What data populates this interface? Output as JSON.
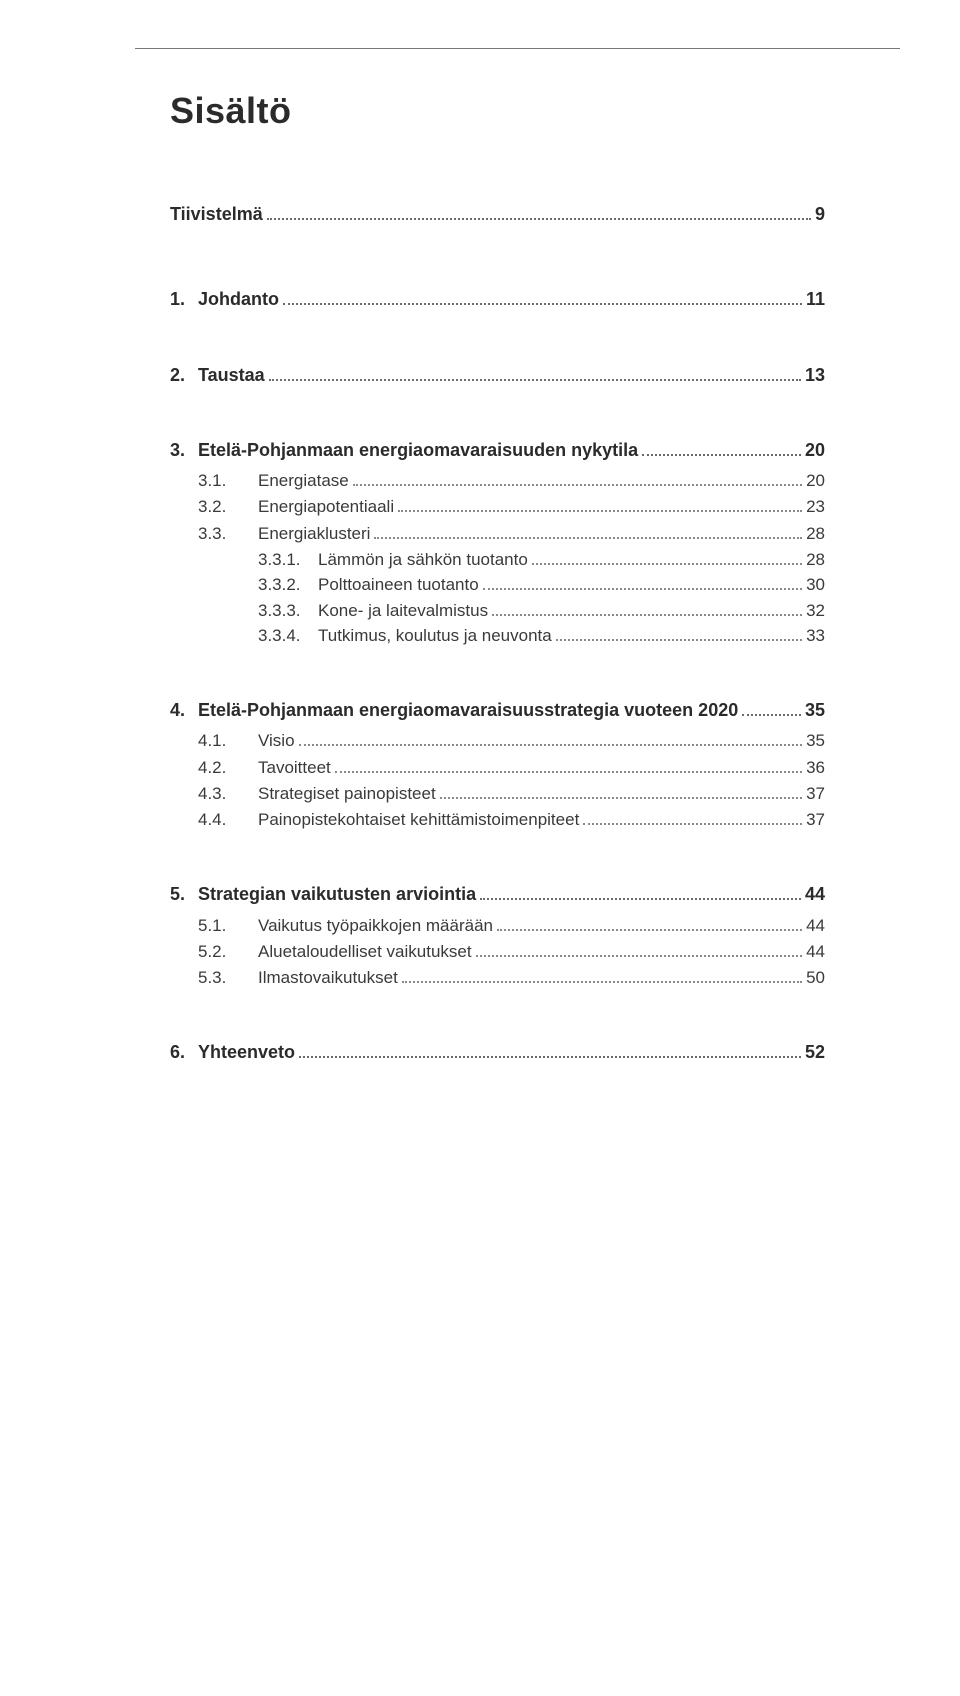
{
  "title": "Sisältö",
  "summary": {
    "label": "Tiivistelmä",
    "page": "9"
  },
  "sections": [
    {
      "num": "1.",
      "label": "Johdanto",
      "page": "11",
      "subs": []
    },
    {
      "num": "2.",
      "label": "Taustaa",
      "page": "13",
      "subs": []
    },
    {
      "num": "3.",
      "label": "Etelä-Pohjanmaan energiaomavaraisuuden nykytila",
      "page": "20",
      "subs": [
        {
          "num": "3.1.",
          "label": "Energiatase",
          "page": "20",
          "subsubs": []
        },
        {
          "num": "3.2.",
          "label": "Energiapotentiaali",
          "page": "23",
          "subsubs": []
        },
        {
          "num": "3.3.",
          "label": "Energiaklusteri",
          "page": "28",
          "subsubs": [
            {
              "num": "3.3.1.",
              "label": "Lämmön ja sähkön tuotanto",
              "page": "28"
            },
            {
              "num": "3.3.2.",
              "label": "Polttoaineen tuotanto",
              "page": "30"
            },
            {
              "num": "3.3.3.",
              "label": "Kone- ja laitevalmistus",
              "page": "32"
            },
            {
              "num": "3.3.4.",
              "label": "Tutkimus, koulutus ja neuvonta",
              "page": "33"
            }
          ]
        }
      ]
    },
    {
      "num": "4.",
      "label": "Etelä-Pohjanmaan energiaomavaraisuusstrategia vuoteen 2020",
      "page": "35",
      "subs": [
        {
          "num": "4.1.",
          "label": "Visio",
          "page": "35",
          "subsubs": []
        },
        {
          "num": "4.2.",
          "label": "Tavoitteet",
          "page": "36",
          "subsubs": []
        },
        {
          "num": "4.3.",
          "label": "Strategiset painopisteet",
          "page": "37",
          "subsubs": []
        },
        {
          "num": "4.4.",
          "label": "Painopistekohtaiset kehittämistoimenpiteet",
          "page": "37",
          "subsubs": []
        }
      ]
    },
    {
      "num": "5.",
      "label": "Strategian vaikutusten arviointia",
      "page": "44",
      "subs": [
        {
          "num": "5.1.",
          "label": "Vaikutus työpaikkojen määrään",
          "page": "44",
          "subsubs": []
        },
        {
          "num": "5.2.",
          "label": "Aluetaloudelliset vaikutukset",
          "page": "44",
          "subsubs": []
        },
        {
          "num": "5.3.",
          "label": "Ilmastovaikutukset",
          "page": "50",
          "subsubs": []
        }
      ]
    },
    {
      "num": "6.",
      "label": "Yhteenveto",
      "page": "52",
      "subs": []
    }
  ]
}
